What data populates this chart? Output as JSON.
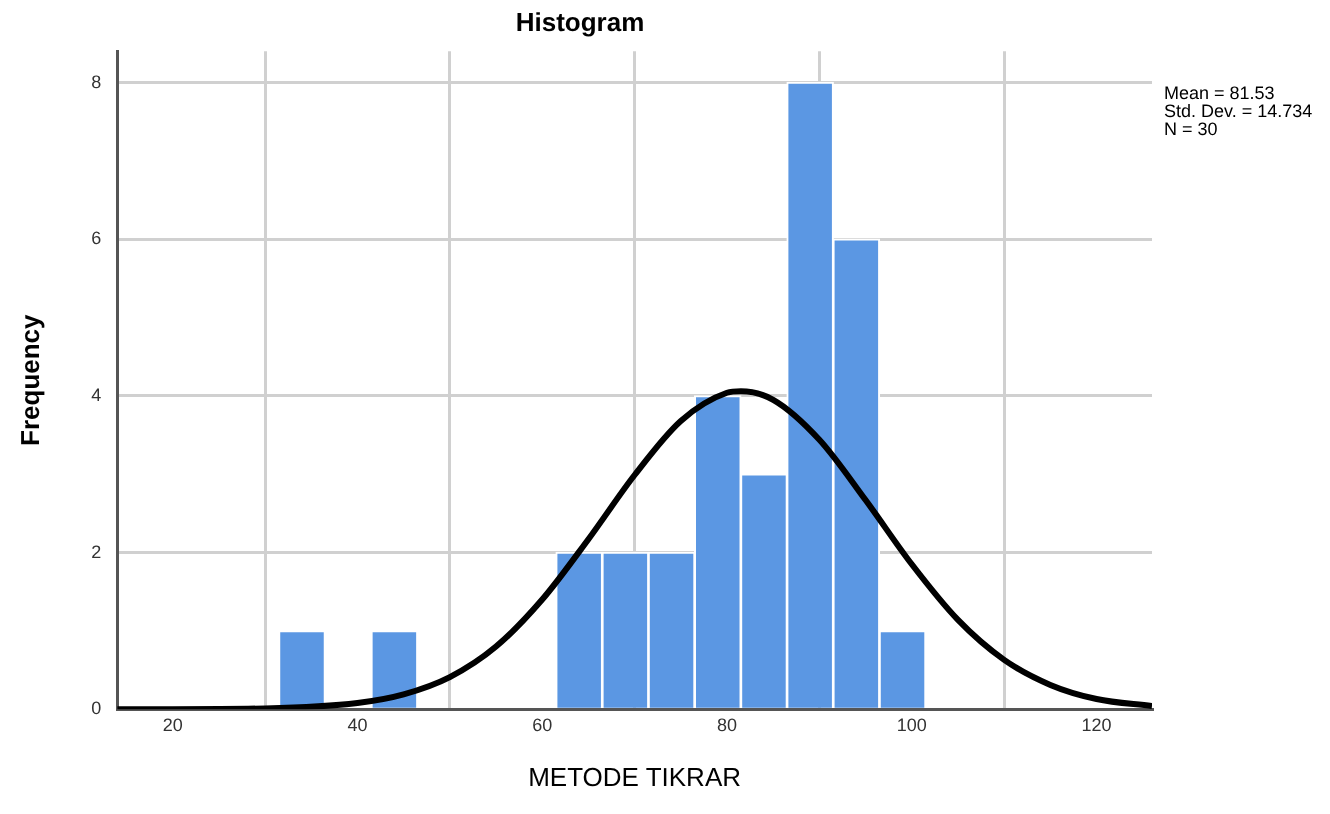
{
  "chart_data": {
    "type": "histogram",
    "title": "Histogram",
    "xlabel": "METODE TIKRAR",
    "ylabel": "Frequency",
    "bins": [
      31.5,
      36.5,
      41.5,
      46.5,
      51.5,
      56.5,
      61.5,
      66.5,
      71.5,
      76.5,
      81.5,
      86.5,
      91.5,
      96.5,
      101.5
    ],
    "values": [
      1,
      0,
      1,
      0,
      0,
      0,
      2,
      2,
      2,
      4,
      3,
      8,
      6,
      1
    ],
    "color": "#5b97e3",
    "series": [
      {
        "type": "line",
        "color": "#000000",
        "x": [
          14,
          20,
          30,
          40,
          45,
          50,
          55,
          60,
          65,
          70,
          75,
          80,
          81.5,
          85,
          90,
          95,
          100,
          105,
          110,
          115,
          120,
          126
        ],
        "values": [
          0,
          0,
          0.01,
          0.08,
          0.19,
          0.41,
          0.8,
          1.4,
          2.17,
          2.99,
          3.68,
          4.04,
          4.06,
          3.95,
          3.44,
          2.67,
          1.85,
          1.14,
          0.63,
          0.31,
          0.13,
          0.04
        ]
      }
    ],
    "xlim": [
      14,
      126
    ],
    "xticks": [
      20,
      40,
      60,
      80,
      100,
      120
    ],
    "ylim": [
      0,
      8.4
    ],
    "yticks": [
      0,
      2,
      4,
      6,
      8
    ],
    "grid": true,
    "legend": false,
    "marker": "none",
    "line_style": "solid",
    "annotations": [
      "Mean = 81.53",
      "Std. Dev. = 14.734",
      "N = 30"
    ]
  }
}
